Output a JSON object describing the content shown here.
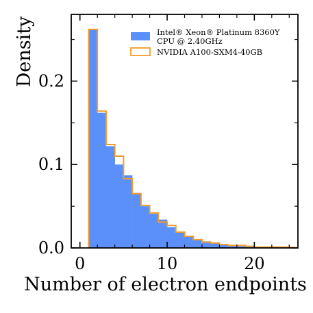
{
  "chart_data": {
    "type": "histogram",
    "xlabel": "Number of electron endpoints",
    "ylabel": "Density",
    "xlim": [
      -1,
      25
    ],
    "ylim": [
      0,
      0.28
    ],
    "x_ticks": [
      0,
      10,
      20
    ],
    "x_tick_labels": [
      "0",
      "10",
      "20"
    ],
    "y_ticks": [
      0.0,
      0.1,
      0.2
    ],
    "y_tick_labels": [
      "0.0",
      "0.1",
      "0.2"
    ],
    "bin_edges": [
      1,
      2,
      3,
      4,
      5,
      6,
      7,
      8,
      9,
      10,
      11,
      12,
      13,
      14,
      15,
      16,
      17,
      18,
      19,
      20,
      21,
      22,
      23,
      24
    ],
    "legend_position": "top-right",
    "series": [
      {
        "name": "Intel® Xeon® Platinum 8360Y CPU @ 2.40GHz",
        "style": "filled",
        "color": "#5b8ff9",
        "values": [
          0.262,
          0.162,
          0.122,
          0.1,
          0.087,
          0.066,
          0.05,
          0.041,
          0.034,
          0.025,
          0.019,
          0.014,
          0.01,
          0.008,
          0.006,
          0.004,
          0.003,
          0.002,
          0.002,
          0.001,
          0.001,
          0.001,
          0.001
        ]
      },
      {
        "name": "NVIDIA A100-SXM4-40GB",
        "style": "step",
        "color": "#f39c2b",
        "values": [
          0.262,
          0.164,
          0.124,
          0.11,
          0.083,
          0.065,
          0.051,
          0.042,
          0.031,
          0.027,
          0.019,
          0.014,
          0.01,
          0.007,
          0.006,
          0.004,
          0.003,
          0.003,
          0.002,
          0.001,
          0.001,
          0.001,
          0.001
        ]
      }
    ],
    "legend": {
      "entries": [
        {
          "line1": "Intel® Xeon® Platinum 8360Y",
          "line2": "CPU @ 2.40GHz"
        },
        {
          "line1": "NVIDIA A100-SXM4-40GB",
          "line2": ""
        }
      ]
    }
  }
}
